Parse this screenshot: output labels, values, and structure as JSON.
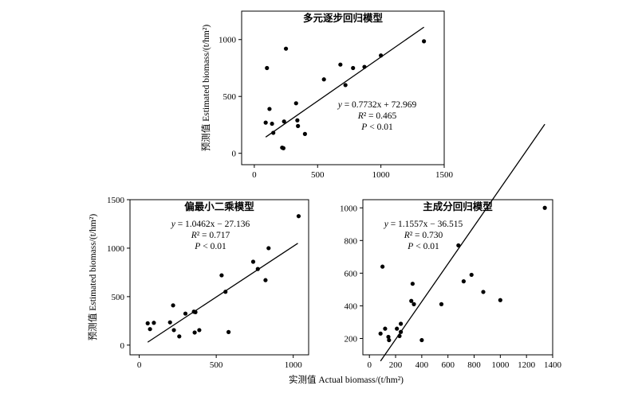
{
  "chart_data": [
    {
      "type": "scatter",
      "title": "多元逐步回归模型",
      "ylabel": "预测值 Estimated biomass/(t/hm²)",
      "xlabel": "",
      "xlim": [
        -100,
        1500
      ],
      "ylim": [
        -100,
        1250
      ],
      "xticks": [
        0,
        500,
        1000,
        1500
      ],
      "yticks": [
        0,
        500,
        1000
      ],
      "grid": false,
      "annotation": {
        "equation": "y = 0.7732x + 72.969",
        "r2": "R² = 0.465",
        "p": "P < 0.01",
        "placement": "lower-right"
      },
      "regression": {
        "slope": 0.7732,
        "intercept": 72.969,
        "x_range": [
          90,
          1340
        ]
      },
      "points": [
        {
          "x": 90,
          "y": 270
        },
        {
          "x": 100,
          "y": 750
        },
        {
          "x": 120,
          "y": 390
        },
        {
          "x": 140,
          "y": 260
        },
        {
          "x": 150,
          "y": 180
        },
        {
          "x": 220,
          "y": 50
        },
        {
          "x": 230,
          "y": 45
        },
        {
          "x": 235,
          "y": 280
        },
        {
          "x": 250,
          "y": 920
        },
        {
          "x": 330,
          "y": 440
        },
        {
          "x": 340,
          "y": 290
        },
        {
          "x": 345,
          "y": 240
        },
        {
          "x": 400,
          "y": 170
        },
        {
          "x": 550,
          "y": 650
        },
        {
          "x": 680,
          "y": 780
        },
        {
          "x": 720,
          "y": 600
        },
        {
          "x": 780,
          "y": 750
        },
        {
          "x": 870,
          "y": 760
        },
        {
          "x": 1000,
          "y": 860
        },
        {
          "x": 1340,
          "y": 985
        }
      ]
    },
    {
      "type": "scatter",
      "title": "偏最小二乘模型",
      "ylabel": "预测值 Estimated biomass/(t/hm²)",
      "xlabel": "",
      "xlim": [
        -60,
        1100
      ],
      "ylim": [
        -100,
        1500
      ],
      "xticks": [
        0,
        500,
        1000
      ],
      "yticks": [
        0,
        500,
        1000,
        1500
      ],
      "grid": false,
      "annotation": {
        "equation": "y = 1.0462x − 27.136",
        "r2": "R² = 0.717",
        "p": "P < 0.01",
        "placement": "top-left"
      },
      "regression": {
        "slope": 1.0462,
        "intercept": -27.136,
        "x_range": [
          55,
          1030
        ]
      },
      "points": [
        {
          "x": 55,
          "y": 225
        },
        {
          "x": 70,
          "y": 165
        },
        {
          "x": 95,
          "y": 230
        },
        {
          "x": 200,
          "y": 235
        },
        {
          "x": 220,
          "y": 410
        },
        {
          "x": 225,
          "y": 155
        },
        {
          "x": 260,
          "y": 90
        },
        {
          "x": 300,
          "y": 325
        },
        {
          "x": 355,
          "y": 345
        },
        {
          "x": 360,
          "y": 130
        },
        {
          "x": 365,
          "y": 340
        },
        {
          "x": 390,
          "y": 155
        },
        {
          "x": 535,
          "y": 720
        },
        {
          "x": 560,
          "y": 550
        },
        {
          "x": 580,
          "y": 135
        },
        {
          "x": 740,
          "y": 860
        },
        {
          "x": 770,
          "y": 785
        },
        {
          "x": 820,
          "y": 670
        },
        {
          "x": 840,
          "y": 1000
        },
        {
          "x": 1035,
          "y": 1330
        }
      ]
    },
    {
      "type": "scatter",
      "title": "主成分回归模型",
      "ylabel": "",
      "xlabel": "",
      "xlim": [
        -50,
        1400
      ],
      "ylim": [
        100,
        1050
      ],
      "xticks": [
        0,
        200,
        400,
        600,
        800,
        1000,
        1200,
        1400
      ],
      "yticks": [
        200,
        400,
        600,
        800,
        1000
      ],
      "grid": false,
      "annotation": {
        "equation": "y = 1.1557x − 36.515",
        "r2": "R² = 0.730",
        "p": "P < 0.01",
        "placement": "top-left"
      },
      "regression": {
        "slope": 1.1557,
        "intercept": -36.515,
        "x_range": [
          85,
          1340
        ]
      },
      "points": [
        {
          "x": 85,
          "y": 230
        },
        {
          "x": 100,
          "y": 640
        },
        {
          "x": 120,
          "y": 260
        },
        {
          "x": 145,
          "y": 210
        },
        {
          "x": 150,
          "y": 190
        },
        {
          "x": 210,
          "y": 260
        },
        {
          "x": 230,
          "y": 215
        },
        {
          "x": 240,
          "y": 240
        },
        {
          "x": 240,
          "y": 290
        },
        {
          "x": 320,
          "y": 430
        },
        {
          "x": 330,
          "y": 535
        },
        {
          "x": 340,
          "y": 410
        },
        {
          "x": 400,
          "y": 190
        },
        {
          "x": 550,
          "y": 410
        },
        {
          "x": 680,
          "y": 770
        },
        {
          "x": 720,
          "y": 550
        },
        {
          "x": 780,
          "y": 590
        },
        {
          "x": 870,
          "y": 485
        },
        {
          "x": 1000,
          "y": 435
        },
        {
          "x": 1340,
          "y": 1000
        }
      ]
    }
  ],
  "shared_xlabel": "实测值 Actual biomass/(t/hm²)"
}
